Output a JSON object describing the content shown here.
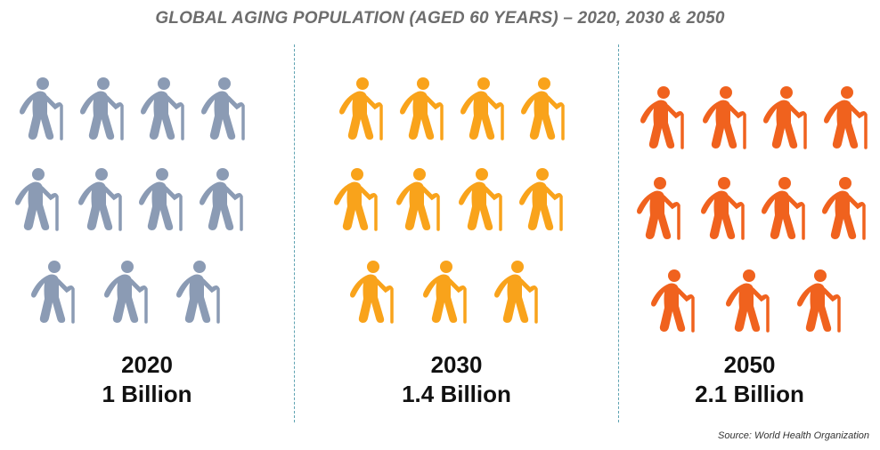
{
  "title": "GLOBAL AGING POPULATION (AGED 60 YEARS) – 2020, 2030 & 2050",
  "source": "Source: World Health Organization",
  "chart_data": {
    "type": "pictogram",
    "categories": [
      "2020",
      "2030",
      "2050"
    ],
    "values": [
      1,
      1.4,
      2.1
    ],
    "value_labels": [
      "1 Billion",
      "1.4 Billion",
      "2.1 Billion"
    ],
    "icon": "elderly-person-with-cane-icon",
    "icons_per_group": 11,
    "colors": [
      "#8b9bb4",
      "#f9a31b",
      "#f0621e"
    ]
  }
}
